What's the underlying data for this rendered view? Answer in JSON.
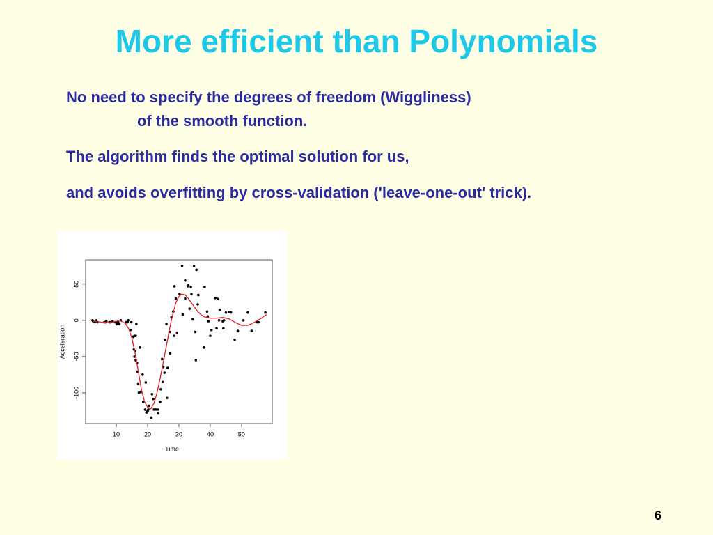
{
  "title": "More efficient than Polynomials",
  "body": [
    "No need to specify the degrees of freedom (Wiggliness)",
    "of the smooth function.",
    "The algorithm finds the optimal solution for us,",
    "and avoids overfitting by cross-validation ('leave-one-out' trick)."
  ],
  "page_number": "6",
  "chart_data": {
    "type": "scatter",
    "xlabel": "Time",
    "ylabel": "Acceleration",
    "xlim": [
      0.2,
      59.8
    ],
    "ylim": [
      -142.4,
      83.4
    ],
    "xticks": [
      10,
      20,
      30,
      40,
      50
    ],
    "yticks": [
      -100,
      -50,
      0,
      50
    ],
    "series": [
      {
        "style": "points",
        "color": "#000000",
        "x": [
          2.4,
          2.6,
          3.2,
          3.6,
          4,
          6.2,
          6.6,
          6.8,
          7.8,
          8.2,
          8.8,
          9.6,
          10,
          10.2,
          10.6,
          11,
          11.4,
          13.2,
          13.6,
          13.8,
          14.6,
          14.8,
          15.4,
          15.6,
          15.8,
          16,
          16.2,
          16.4,
          16.6,
          16.8,
          17.6,
          17.8,
          18.6,
          19.2,
          19.4,
          19.6,
          20.2,
          20.4,
          21.2,
          21.4,
          21.8,
          22,
          23.2,
          23.4,
          24,
          24.2,
          24.6,
          25,
          25.4,
          25.6,
          26,
          26.2,
          26.4,
          27,
          27.2,
          27.6,
          28.2,
          28.4,
          28.6,
          29.4,
          30.2,
          31,
          31.2,
          32,
          32.8,
          33.4,
          33.8,
          34.4,
          34.8,
          35.2,
          35.4,
          35.6,
          36.2,
          38,
          39.2,
          39.4,
          40,
          40.4,
          41.6,
          42.4,
          42.8,
          43,
          44,
          44.4,
          45,
          46.6,
          47.8,
          48.8,
          50.6,
          52,
          53.2,
          55,
          55.4,
          57.6,
          15.8,
          16.2,
          17,
          17.2,
          18.4,
          20,
          22.6,
          24.8,
          29,
          32,
          33,
          34,
          36,
          38.2,
          39,
          42,
          44.2,
          46
        ],
        "values": [
          0,
          -1.3,
          -2.7,
          0,
          -2.7,
          -2.7,
          -2.7,
          -1.3,
          -2.7,
          -2.7,
          -1.3,
          -2.7,
          -2.7,
          -5.4,
          -2.7,
          -5.4,
          0,
          -2.7,
          -2.7,
          0,
          -13.3,
          -2.7,
          -22.8,
          -40.2,
          -21.5,
          -42.9,
          -21.5,
          -5.4,
          -59,
          -71,
          -37.5,
          -99.1,
          -112.5,
          -123.1,
          -85.6,
          -127.2,
          -123.1,
          -117.9,
          -134,
          -101.9,
          -108.4,
          -123.1,
          -123.1,
          -128.5,
          -112.5,
          -95.1,
          -53.5,
          -64.4,
          -72.3,
          -26.8,
          -5.4,
          -107.1,
          -65.6,
          -16,
          -45.6,
          4,
          12,
          -21.5,
          46.9,
          -17.4,
          36.2,
          75,
          8.1,
          54.9,
          46.9,
          16,
          45.6,
          1.3,
          75,
          -16,
          -54.9,
          69.6,
          34.8,
          -37.5,
          5.4,
          -1.3,
          -21.5,
          -13.3,
          30.8,
          29.4,
          0,
          14.7,
          -1.3,
          0,
          10.7,
          10.7,
          -26.8,
          -14.7,
          0,
          10.7,
          -14.7,
          -2.7,
          -2.7,
          10.7,
          -50,
          -55,
          -88,
          -100,
          -75,
          -125,
          -123,
          -85,
          30,
          30,
          48,
          36,
          22,
          46,
          12,
          -11,
          -11,
          11
        ]
      },
      {
        "style": "line",
        "color": "#e02020",
        "x": [
          2.4,
          5,
          8,
          10,
          11,
          12,
          13,
          14,
          15,
          16,
          17,
          18,
          19,
          20,
          21,
          22,
          23,
          24,
          25,
          26,
          27,
          28,
          29,
          30,
          31,
          32,
          33,
          34,
          35,
          36,
          37,
          38,
          40,
          42,
          44,
          46,
          48,
          50,
          52,
          54,
          56,
          58
        ],
        "values": [
          -1,
          -2.5,
          -3,
          -1.5,
          0,
          -2,
          -5,
          -12,
          -25,
          -45,
          -70,
          -95,
          -112,
          -120,
          -122,
          -115,
          -100,
          -80,
          -58,
          -35,
          -12,
          8,
          24,
          33,
          36,
          35,
          30,
          24,
          18,
          12,
          8,
          5,
          3,
          3,
          4,
          2,
          -3,
          -7,
          -7,
          -3,
          2,
          8
        ]
      }
    ]
  }
}
